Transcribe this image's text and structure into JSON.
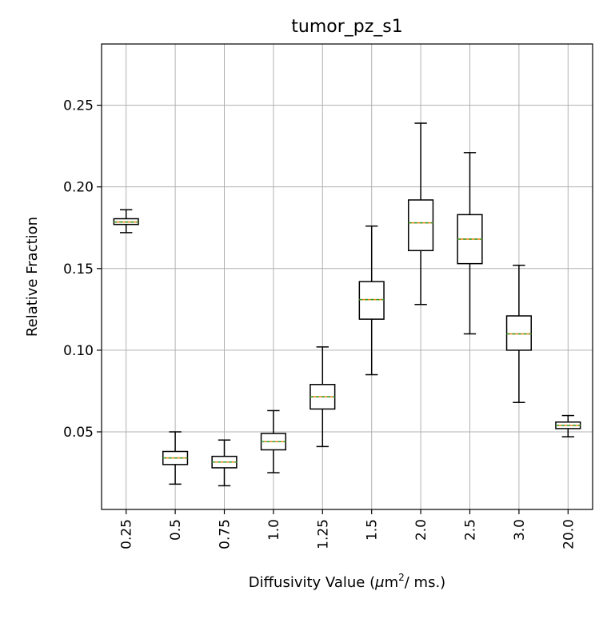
{
  "chart_data": {
    "type": "boxplot",
    "title": "tumor_pz_s1",
    "xlabel": "Diffusivity Value (μm²/ ms.)",
    "xlabel_parts": {
      "prefix": "Diffusivity Value (",
      "mu": "μ",
      "unit": "m",
      "sup": "2",
      "suffix": "/ ms.)"
    },
    "ylabel": "Relative Fraction",
    "ylim": [
      0.0025,
      0.2875
    ],
    "yticks": [
      0.05,
      0.1,
      0.15,
      0.2,
      0.25
    ],
    "ytick_labels": [
      "0.05",
      "0.10",
      "0.15",
      "0.20",
      "0.25"
    ],
    "grid": true,
    "categories": [
      "0.25",
      "0.5",
      "0.75",
      "1.0",
      "1.25",
      "1.5",
      "2.0",
      "2.5",
      "3.0",
      "20.0"
    ],
    "boxes": [
      {
        "category": "0.25",
        "whislo": 0.172,
        "q1": 0.177,
        "median": 0.1785,
        "mean": 0.1785,
        "q3": 0.1805,
        "whishi": 0.186
      },
      {
        "category": "0.5",
        "whislo": 0.018,
        "q1": 0.03,
        "median": 0.034,
        "mean": 0.034,
        "q3": 0.038,
        "whishi": 0.05
      },
      {
        "category": "0.75",
        "whislo": 0.017,
        "q1": 0.028,
        "median": 0.0315,
        "mean": 0.0315,
        "q3": 0.035,
        "whishi": 0.045
      },
      {
        "category": "1.0",
        "whislo": 0.025,
        "q1": 0.039,
        "median": 0.044,
        "mean": 0.044,
        "q3": 0.049,
        "whishi": 0.063
      },
      {
        "category": "1.25",
        "whislo": 0.041,
        "q1": 0.064,
        "median": 0.0715,
        "mean": 0.0715,
        "q3": 0.079,
        "whishi": 0.102
      },
      {
        "category": "1.5",
        "whislo": 0.085,
        "q1": 0.119,
        "median": 0.131,
        "mean": 0.131,
        "q3": 0.142,
        "whishi": 0.176
      },
      {
        "category": "2.0",
        "whislo": 0.128,
        "q1": 0.161,
        "median": 0.178,
        "mean": 0.178,
        "q3": 0.192,
        "whishi": 0.239
      },
      {
        "category": "2.5",
        "whislo": 0.11,
        "q1": 0.153,
        "median": 0.168,
        "mean": 0.168,
        "q3": 0.183,
        "whishi": 0.221
      },
      {
        "category": "3.0",
        "whislo": 0.068,
        "q1": 0.1,
        "median": 0.11,
        "mean": 0.11,
        "q3": 0.121,
        "whishi": 0.152
      },
      {
        "category": "20.0",
        "whislo": 0.047,
        "q1": 0.052,
        "median": 0.054,
        "mean": 0.054,
        "q3": 0.056,
        "whishi": 0.06
      }
    ],
    "colors": {
      "box": "#000000",
      "median": "#ff7f0e",
      "mean": "#2ca02c",
      "grid": "#b0b0b0"
    }
  }
}
